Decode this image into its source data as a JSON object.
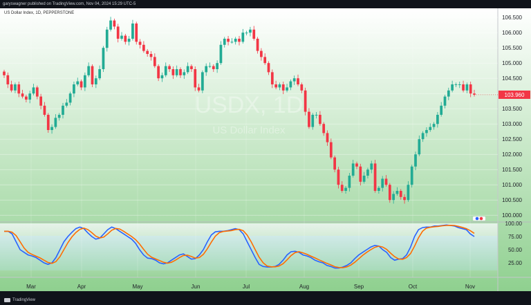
{
  "header": {
    "published": "garyswagner published on TradingView.com, Nov 04, 2024 15:29 UTC-5"
  },
  "symbol_line": "US Dollar Index, 1D, PEPPERSTONE",
  "watermark": {
    "ticker": "USDX, 1D",
    "name": "US Dollar Index"
  },
  "footer": {
    "brand": "TradingView"
  },
  "colors": {
    "up": "#22ab94",
    "down": "#f23645",
    "price_tag": "#f23645",
    "k_line": "#2962ff",
    "d_line": "#ff6d00",
    "bg_top": "#ffffff",
    "bg_bottom": "#8fd08f"
  },
  "chart_data": [
    {
      "type": "candlestick",
      "title": "US Dollar Index, 1D, PEPPERSTONE",
      "last_price": "103.960",
      "ylim": [
        99.8,
        106.8
      ],
      "yticks": [
        "106.500",
        "106.000",
        "105.500",
        "105.000",
        "104.500",
        "104.000",
        "103.500",
        "103.000",
        "102.500",
        "102.000",
        "101.500",
        "101.000",
        "100.500",
        "100.000"
      ],
      "xticks": [
        "Mar",
        "Apr",
        "May",
        "Jun",
        "Jul",
        "Aug",
        "Sep",
        "Oct",
        "Nov"
      ],
      "closes": [
        104.6,
        104.3,
        104.1,
        104.3,
        104.0,
        103.9,
        103.8,
        104.0,
        104.2,
        103.9,
        103.6,
        103.3,
        102.8,
        102.9,
        103.2,
        103.3,
        103.6,
        103.7,
        104.0,
        104.3,
        104.4,
        104.2,
        104.6,
        104.9,
        104.3,
        104.5,
        104.8,
        105.5,
        106.1,
        106.4,
        106.2,
        105.8,
        105.9,
        105.7,
        105.8,
        106.3,
        105.7,
        105.6,
        105.4,
        105.3,
        105.2,
        104.9,
        104.5,
        104.6,
        104.9,
        104.8,
        104.6,
        104.8,
        104.6,
        104.7,
        104.9,
        104.8,
        104.2,
        104.1,
        104.7,
        104.9,
        104.9,
        104.8,
        105.0,
        105.6,
        105.8,
        105.7,
        105.7,
        105.8,
        105.7,
        106.0,
        106.0,
        106.1,
        105.8,
        105.4,
        105.2,
        105.0,
        104.7,
        104.3,
        104.2,
        104.3,
        104.1,
        104.2,
        104.4,
        104.5,
        104.3,
        104.1,
        103.4,
        102.9,
        103.3,
        103.3,
        103.0,
        102.7,
        102.4,
        101.9,
        101.5,
        101.0,
        100.8,
        100.9,
        101.3,
        101.7,
        101.6,
        101.1,
        101.3,
        101.5,
        101.7,
        100.8,
        100.9,
        101.2,
        101.0,
        100.5,
        100.7,
        100.8,
        100.6,
        100.5,
        101.0,
        101.6,
        102.0,
        102.5,
        102.7,
        102.8,
        102.9,
        103.0,
        103.3,
        103.6,
        103.9,
        104.1,
        104.3,
        104.3,
        104.3,
        104.1,
        104.3,
        104.0,
        103.96
      ],
      "indicator": {
        "name": "Stochastic",
        "ylim": [
          0,
          100
        ],
        "yticks": [
          "100.00",
          "75.00",
          "50.00",
          "25.00"
        ],
        "k_values": [
          85,
          85,
          80,
          65,
          50,
          45,
          40,
          38,
          35,
          30,
          25,
          22,
          25,
          35,
          50,
          65,
          75,
          83,
          90,
          93,
          90,
          82,
          75,
          70,
          72,
          80,
          88,
          93,
          90,
          85,
          80,
          75,
          70,
          62,
          50,
          40,
          34,
          33,
          30,
          25,
          23,
          25,
          30,
          35,
          40,
          42,
          37,
          32,
          33,
          40,
          50,
          65,
          78,
          84,
          85,
          85,
          86,
          88,
          90,
          88,
          80,
          65,
          50,
          35,
          22,
          18,
          17,
          17,
          18,
          22,
          30,
          40,
          46,
          47,
          45,
          40,
          38,
          35,
          30,
          27,
          25,
          20,
          18,
          15,
          15,
          17,
          20,
          25,
          33,
          40,
          45,
          50,
          55,
          58,
          57,
          50,
          45,
          35,
          30,
          32,
          33,
          40,
          55,
          75,
          88,
          92,
          93,
          93,
          95,
          95,
          96,
          97,
          96,
          95,
          92,
          90,
          88,
          80,
          75
        ]
      }
    }
  ]
}
